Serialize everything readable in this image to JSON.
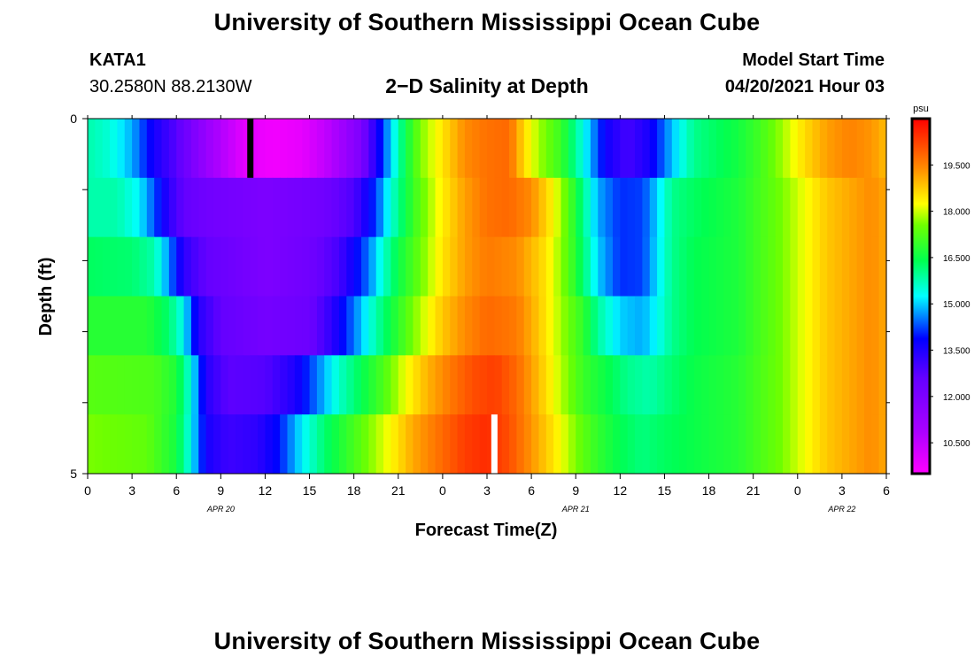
{
  "page": {
    "title_top": "University of Southern Mississippi Ocean Cube",
    "title_bottom": "University of Southern Mississippi Ocean Cube",
    "station_id": "KATA1",
    "station_coords": "30.2580N  88.2130W",
    "plot_title": "2−D Salinity at Depth",
    "model_start_label": "Model Start Time",
    "model_start_value": "04/20/2021 Hour 03"
  },
  "chart_data": {
    "type": "heatmap",
    "title": "2−D Salinity at Depth",
    "xlabel": "Forecast Time(Z)",
    "ylabel": "Depth (ft)",
    "x_range_hours_since_apr20_00z": [
      0,
      54
    ],
    "x_ticks": [
      "0",
      "3",
      "6",
      "9",
      "12",
      "15",
      "18",
      "21",
      "0",
      "3",
      "6",
      "9",
      "12",
      "15",
      "18",
      "21",
      "0",
      "3",
      "6"
    ],
    "date_labels": [
      {
        "label": "APR  20",
        "tick_index": 3
      },
      {
        "label": "APR  21",
        "tick_index": 11
      },
      {
        "label": "APR  22",
        "tick_index": 17
      }
    ],
    "y_ticks": [
      "0",
      "5"
    ],
    "y_range": [
      0,
      5
    ],
    "colorbar": {
      "unit": "psu",
      "range": [
        9.5,
        21.0
      ],
      "labels": [
        "10.500",
        "12.000",
        "13.500",
        "15.000",
        "16.500",
        "18.000",
        "19.500"
      ]
    },
    "markers": [
      {
        "color": "#000000",
        "hour": 11,
        "row": 0
      },
      {
        "color": "#ffffff",
        "hour": 27.5,
        "row": 5
      }
    ],
    "rows": [
      {
        "hours": [
          0,
          1.5,
          3,
          4.5,
          6,
          8.5,
          10.5,
          12.5,
          14.5,
          16.5,
          18.5,
          19.5,
          20.5,
          21.5,
          22.5,
          24,
          25.5,
          27,
          28.5,
          29.5,
          30.5,
          32,
          33.5,
          35,
          36.5,
          38,
          39.5,
          41,
          42.5,
          44,
          45.5,
          47,
          48.5,
          50,
          51.5,
          53,
          54
        ],
        "values": [
          15.8,
          15.5,
          14.8,
          13.6,
          12.8,
          11.0,
          10.0,
          9.7,
          9.9,
          10.7,
          12.0,
          13.5,
          15.0,
          16.5,
          17.6,
          18.5,
          19.4,
          19.7,
          19.8,
          18.6,
          17.8,
          17.0,
          15.4,
          13.7,
          13.0,
          13.6,
          14.9,
          16.0,
          16.3,
          16.6,
          17.1,
          17.8,
          18.6,
          19.2,
          19.5,
          19.3,
          18.9
        ]
      },
      {
        "hours": [
          0,
          2,
          3.5,
          4.5,
          5.5,
          6.5,
          8,
          12,
          16,
          18,
          19.5,
          20.5,
          21.5,
          22.5,
          24,
          25.5,
          27,
          28.5,
          30,
          31.5,
          32.5,
          33.5,
          34.5,
          36,
          37.5,
          38.5,
          39.5,
          41,
          44,
          47,
          50,
          53,
          54
        ],
        "values": [
          15.8,
          15.8,
          15.2,
          14.3,
          13.3,
          12.6,
          12.3,
          12.0,
          12.3,
          12.9,
          14.2,
          15.5,
          16.5,
          17.4,
          18.4,
          19.2,
          19.7,
          19.8,
          19.4,
          18.3,
          17.3,
          16.0,
          14.8,
          14.1,
          14.2,
          15.0,
          16.0,
          16.3,
          16.7,
          17.6,
          18.8,
          19.4,
          19.1
        ]
      },
      {
        "hours": [
          0,
          3,
          4.5,
          5.5,
          6.5,
          8,
          12,
          15,
          17,
          19,
          20,
          21,
          22.5,
          24,
          25.5,
          27,
          29,
          31,
          32.5,
          33.5,
          34.5,
          36,
          37.5,
          38.5,
          39.5,
          41,
          44,
          47,
          50,
          53,
          54
        ],
        "values": [
          16.3,
          16.2,
          15.8,
          14.6,
          13.3,
          12.6,
          12.0,
          12.3,
          13.0,
          14.5,
          15.6,
          16.5,
          17.5,
          18.5,
          19.2,
          19.6,
          19.4,
          18.5,
          17.3,
          16.2,
          15.0,
          14.1,
          14.2,
          15.1,
          16.0,
          16.4,
          16.7,
          17.6,
          18.8,
          19.4,
          19.1
        ]
      },
      {
        "hours": [
          0,
          4,
          5.5,
          6.5,
          7.5,
          9,
          12,
          15,
          16.5,
          18,
          19.5,
          21,
          22.5,
          24,
          25.5,
          27,
          29,
          30.5,
          32,
          33.5,
          34.5,
          36,
          37.5,
          38.5,
          39.5,
          41,
          44,
          47,
          50,
          53,
          54
        ],
        "values": [
          16.8,
          16.8,
          16.2,
          15.3,
          13.4,
          12.6,
          12.2,
          12.4,
          13.3,
          14.5,
          15.8,
          16.9,
          17.9,
          18.8,
          19.4,
          19.8,
          19.6,
          18.8,
          17.8,
          16.9,
          15.9,
          15.0,
          14.8,
          15.3,
          16.0,
          16.4,
          16.7,
          17.6,
          18.8,
          19.4,
          19.1
        ]
      },
      {
        "hours": [
          0,
          4.5,
          6,
          7,
          8,
          9.5,
          12,
          14,
          15.5,
          17,
          18.5,
          20,
          21.5,
          23,
          24.5,
          26,
          27.5,
          29,
          30.5,
          32,
          33.5,
          35,
          36.5,
          38,
          39.5,
          41,
          44,
          47,
          50,
          53,
          54
        ],
        "values": [
          17.3,
          17.2,
          16.7,
          15.4,
          13.4,
          12.7,
          12.8,
          13.5,
          14.5,
          15.6,
          16.4,
          17.2,
          18.2,
          19.0,
          19.6,
          20.1,
          20.3,
          19.8,
          18.9,
          17.9,
          17.0,
          16.5,
          16.0,
          15.8,
          16.2,
          16.5,
          16.8,
          17.6,
          18.8,
          19.4,
          19.1
        ]
      },
      {
        "hours": [
          0,
          4,
          6,
          7,
          8,
          9.5,
          11.5,
          13,
          14.5,
          16,
          17.5,
          19,
          20.5,
          22,
          24,
          25.5,
          27,
          28.5,
          30,
          31.5,
          33,
          34.5,
          36,
          37.5,
          39,
          41,
          44,
          47,
          50,
          53,
          54
        ],
        "values": [
          17.6,
          17.4,
          16.6,
          15.3,
          13.6,
          13.1,
          13.3,
          14.0,
          15.2,
          16.2,
          16.9,
          17.6,
          18.3,
          19.1,
          19.8,
          20.3,
          20.5,
          20.1,
          19.3,
          18.5,
          17.6,
          16.9,
          16.4,
          16.1,
          16.3,
          16.5,
          16.8,
          17.6,
          18.8,
          19.4,
          19.1
        ]
      }
    ]
  }
}
